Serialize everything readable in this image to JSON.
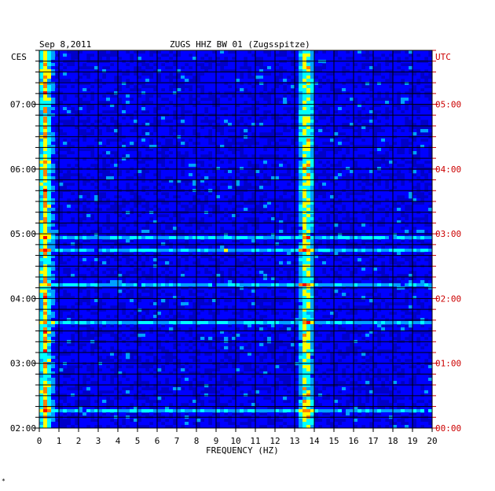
{
  "header": {
    "date": "Sep 8,2011",
    "station": "ZUGS HHZ BW 01 (Zugsspitze)",
    "left_zone": "CES",
    "right_zone": "UTC"
  },
  "chart_data": {
    "type": "heatmap",
    "title": "ZUGS HHZ BW 01 (Zugsspitze)",
    "xlabel": "FREQUENCY (HZ)",
    "xlim": [
      0,
      20
    ],
    "x_ticks": [
      "0",
      "1",
      "2",
      "3",
      "4",
      "5",
      "6",
      "7",
      "8",
      "9",
      "10",
      "11",
      "12",
      "13",
      "14",
      "15",
      "16",
      "17",
      "18",
      "19",
      "20"
    ],
    "ylabel_left": "CES",
    "ylabel_right": "UTC",
    "y_ticks_left": [
      "02:00",
      "03:00",
      "04:00",
      "05:00",
      "06:00",
      "07:00"
    ],
    "y_ticks_right": [
      "00:00",
      "01:00",
      "02:00",
      "03:00",
      "04:00",
      "05:00"
    ],
    "time_range_utc": [
      "00:00",
      "05:50"
    ],
    "colormap": [
      "#000080",
      "#0000ff",
      "#00a0ff",
      "#00ffff",
      "#ffff00",
      "#ff8000",
      "#ff0000"
    ],
    "dominant_bands_hz": [
      0.3,
      13.6
    ],
    "grid": true
  },
  "colors": {
    "left_axis": "#000000",
    "right_axis": "#cc0000",
    "grid": "#000000",
    "background": "#0000c8"
  },
  "footer_mark": "*"
}
